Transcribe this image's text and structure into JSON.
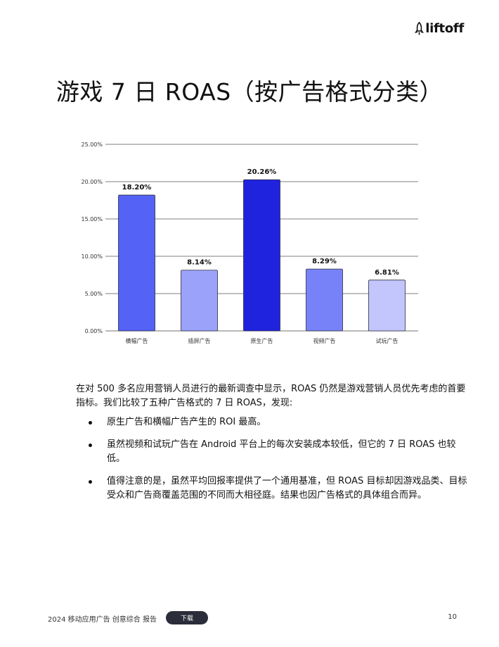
{
  "brand": {
    "logo_text": "liftoff",
    "logo_icon": "rocket-icon"
  },
  "title": "游戏 7 日 ROAS（按广告格式分类）",
  "chart_data": {
    "type": "bar",
    "categories": [
      "横幅广告",
      "插屏广告",
      "原生广告",
      "视频广告",
      "试玩广告"
    ],
    "values": [
      18.2,
      8.14,
      20.26,
      8.29,
      6.81
    ],
    "value_labels": [
      "18.20%",
      "8.14%",
      "20.26%",
      "8.29%",
      "6.81%"
    ],
    "colors": [
      "#5462f6",
      "#9aa2fa",
      "#2023de",
      "#7882f8",
      "#c3c6fd"
    ],
    "ylim": [
      0,
      25
    ],
    "yticks": [
      0,
      5,
      10,
      15,
      20,
      25
    ],
    "ytick_labels": [
      "0.00%",
      "5.00%",
      "10.00%",
      "15.00%",
      "20.00%",
      "25.00%"
    ],
    "grid": true,
    "xlabel": "",
    "ylabel": ""
  },
  "intro": "在对 500 多名应用营销人员进行的最新调查中显示，ROAS 仍然是游戏营销人员优先考虑的首要指标。我们比较了五种广告格式的 7 日 ROAS，发现:",
  "bullets": [
    "原生广告和横幅广告产生的 ROI 最高。",
    "虽然视频和试玩广告在 Android 平台上的每次安装成本较低，但它的 7 日 ROAS 也较低。",
    "值得注意的是，虽然平均回报率提供了一个通用基准，但 ROAS 目标却因游戏品类、目标受众和广告商覆盖范围的不同而大相径庭。结果也因广告格式的具体组合而异。"
  ],
  "footer": {
    "report_title": "2024 移动应用广告 创意综合 报告",
    "download_label": "下载",
    "page_number": "10"
  }
}
